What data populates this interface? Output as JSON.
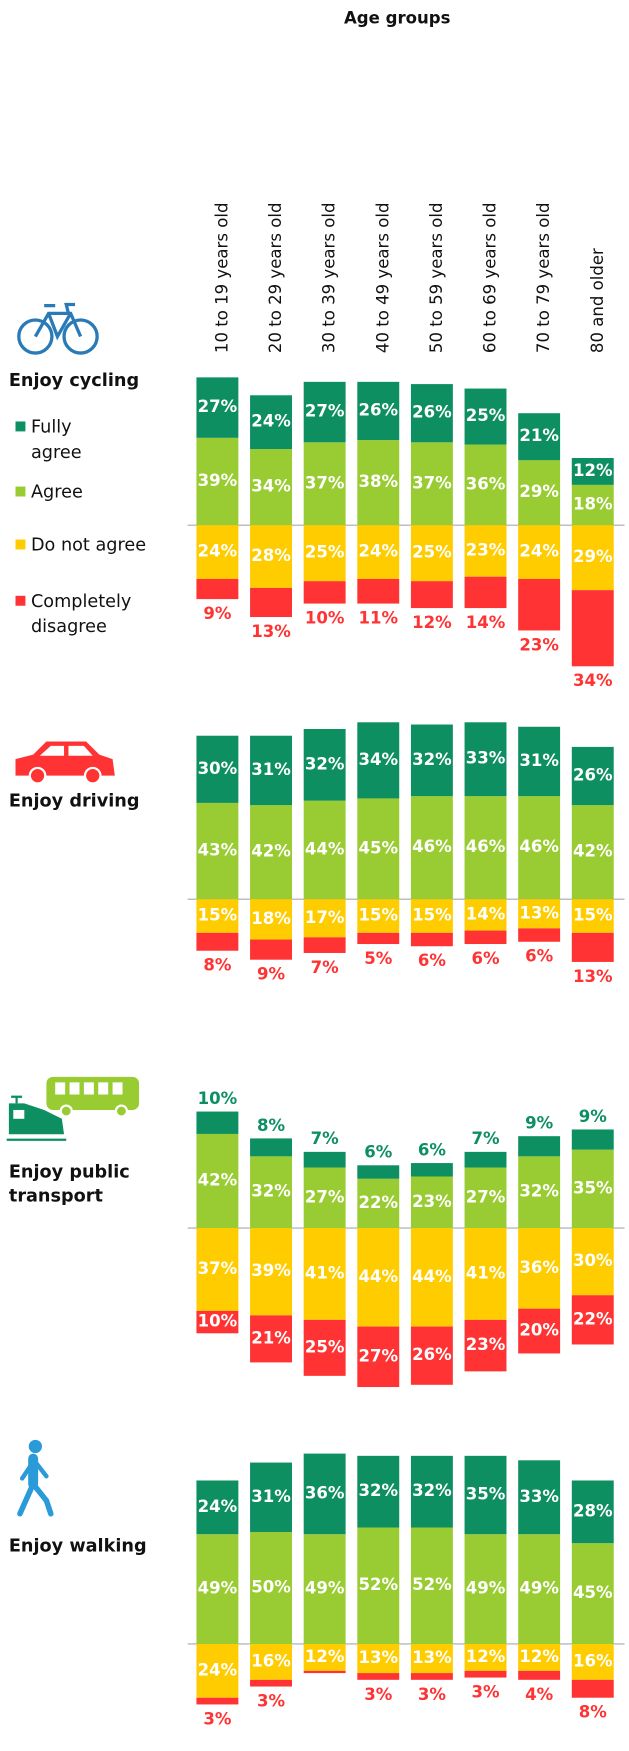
{
  "chart_data": {
    "type": "bar",
    "title": "Age groups",
    "categories": [
      "10 to 19 years old",
      "20 to 29 years old",
      "30 to 39 years old",
      "40 to 49 years old",
      "50 to 59 years old",
      "60 to 69 years old",
      "70 to 79 years old",
      "80 and older"
    ],
    "series": [
      {
        "name": "Fully agree",
        "color": "#0e8f62"
      },
      {
        "name": "Agree",
        "color": "#99cc33"
      },
      {
        "name": "Do not agree",
        "color": "#ffcc00"
      },
      {
        "name": "Completely disagree",
        "color": "#ff3333"
      }
    ],
    "panels": [
      {
        "title": "Enjoy cycling",
        "series": [
          {
            "values": [
              27,
              24,
              27,
              26,
              26,
              25,
              21,
              12
            ],
            "value_labels": [
              "27%",
              "24%",
              "27%",
              "26%",
              "26%",
              "25%",
              "21%",
              "12%"
            ]
          },
          {
            "values": [
              39,
              34,
              37,
              38,
              37,
              36,
              29,
              18
            ],
            "value_labels": [
              "39%",
              "34%",
              "37%",
              "38%",
              "37%",
              "36%",
              "29%",
              "18%"
            ]
          },
          {
            "values": [
              24,
              28,
              25,
              24,
              25,
              23,
              24,
              29
            ],
            "value_labels": [
              "24%",
              "28%",
              "25%",
              "24%",
              "25%",
              "23%",
              "24%",
              "29%"
            ]
          },
          {
            "values": [
              9,
              13,
              10,
              11,
              12,
              14,
              23,
              34
            ],
            "value_labels": [
              "9%",
              "13%",
              "10%",
              "11%",
              "12%",
              "14%",
              "23%",
              "34%"
            ]
          }
        ]
      },
      {
        "title": "Enjoy driving",
        "series": [
          {
            "values": [
              30,
              31,
              32,
              34,
              32,
              33,
              31,
              26
            ],
            "value_labels": [
              "30%",
              "31%",
              "32%",
              "34%",
              "32%",
              "33%",
              "31%",
              "26%"
            ]
          },
          {
            "values": [
              43,
              42,
              44,
              45,
              46,
              46,
              46,
              42
            ],
            "value_labels": [
              "43%",
              "42%",
              "44%",
              "45%",
              "46%",
              "46%",
              "46%",
              "42%"
            ]
          },
          {
            "values": [
              15,
              18,
              17,
              15,
              15,
              14,
              13,
              15
            ],
            "value_labels": [
              "15%",
              "18%",
              "17%",
              "15%",
              "15%",
              "14%",
              "13%",
              "15%"
            ]
          },
          {
            "values": [
              8,
              9,
              7,
              5,
              6,
              6,
              6,
              13
            ],
            "value_labels": [
              "8%",
              "9%",
              "7%",
              "5%",
              "6%",
              "6%",
              "6%",
              "13%"
            ]
          }
        ]
      },
      {
        "title": "Enjoy public transport",
        "series": [
          {
            "values": [
              10,
              8,
              7,
              6,
              6,
              7,
              9,
              9
            ],
            "value_labels": [
              "10%",
              "8%",
              "7%",
              "6%",
              "6%",
              "7%",
              "9%",
              "9%"
            ]
          },
          {
            "values": [
              42,
              32,
              27,
              22,
              23,
              27,
              32,
              35
            ],
            "value_labels": [
              "42%",
              "32%",
              "27%",
              "22%",
              "23%",
              "27%",
              "32%",
              "35%"
            ]
          },
          {
            "values": [
              37,
              39,
              41,
              44,
              44,
              41,
              36,
              30
            ],
            "value_labels": [
              "37%",
              "39%",
              "41%",
              "44%",
              "44%",
              "41%",
              "36%",
              "30%"
            ]
          },
          {
            "values": [
              10,
              21,
              25,
              27,
              26,
              23,
              20,
              22
            ],
            "value_labels": [
              "10%",
              "21%",
              "25%",
              "27%",
              "26%",
              "23%",
              "20%",
              "22%"
            ]
          }
        ]
      },
      {
        "title": "Enjoy walking",
        "series": [
          {
            "values": [
              24,
              31,
              36,
              32,
              32,
              35,
              33,
              28
            ],
            "value_labels": [
              "24%",
              "31%",
              "36%",
              "32%",
              "32%",
              "35%",
              "33%",
              "28%"
            ]
          },
          {
            "values": [
              49,
              50,
              49,
              52,
              52,
              49,
              49,
              45
            ],
            "value_labels": [
              "49%",
              "50%",
              "49%",
              "52%",
              "52%",
              "49%",
              "49%",
              "45%"
            ]
          },
          {
            "values": [
              24,
              16,
              12,
              13,
              13,
              12,
              12,
              16
            ],
            "value_labels": [
              "24%",
              "16%",
              "12%",
              "13%",
              "13%",
              "12%",
              "12%",
              "16%"
            ]
          },
          {
            "values": [
              3,
              3,
              1,
              3,
              3,
              3,
              4,
              8
            ],
            "value_labels": [
              "3%",
              "3%",
              null,
              "3%",
              "3%",
              "3%",
              "4%",
              "8%"
            ]
          }
        ]
      }
    ]
  }
}
